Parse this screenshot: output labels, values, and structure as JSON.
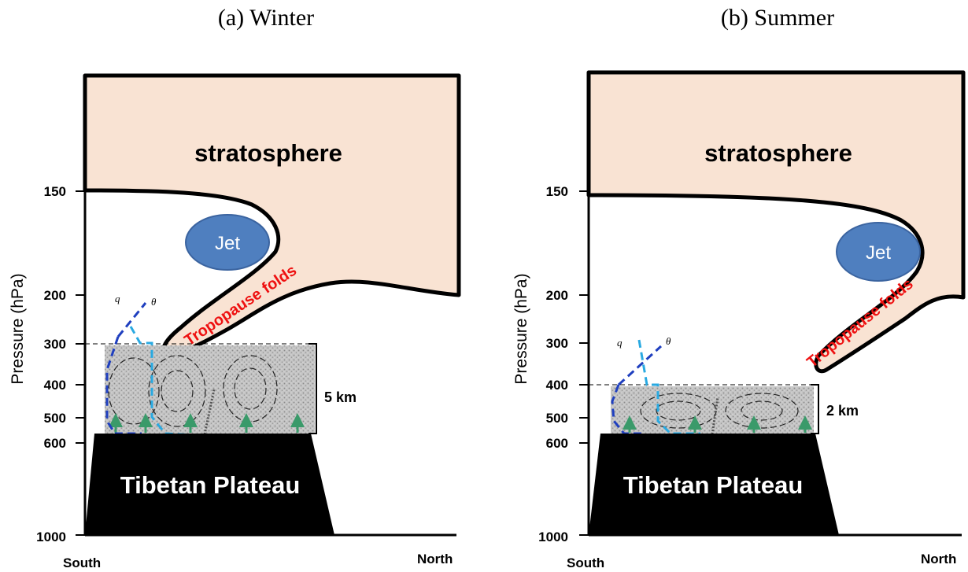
{
  "panels": {
    "winter": {
      "title": "(a) Winter",
      "region_label": "stratosphere",
      "jet_label": "Jet",
      "fold_label": "Tropopause folds",
      "plateau_label": "Tibetan Plateau",
      "pbl_depth_label": "5 km",
      "q_symbol": "q",
      "theta_symbol": "θ",
      "y_axis_label": "Pressure (hPa)",
      "y_ticks": [
        "150",
        "200",
        "300",
        "400",
        "500",
        "600",
        "1000"
      ],
      "x_left_label": "South",
      "x_right_label": "North"
    },
    "summer": {
      "title": "(b) Summer",
      "region_label": "stratosphere",
      "jet_label": "Jet",
      "fold_label": "Tropopause folds",
      "plateau_label": "Tibetan Plateau",
      "pbl_depth_label": "2 km",
      "q_symbol": "q",
      "theta_symbol": "θ",
      "y_axis_label": "Pressure (hPa)",
      "y_ticks": [
        "150",
        "200",
        "300",
        "400",
        "500",
        "600",
        "1000"
      ],
      "x_left_label": "South",
      "x_right_label": "North"
    }
  },
  "colors": {
    "stratosphere_fill": "#f9e3d3",
    "jet_fill": "#4f7fbf",
    "fold_text": "#ee1111",
    "q_profile": "#1f3fbf",
    "theta_profile": "#29a9e1",
    "updraft_arrow": "#3a9a6a",
    "plateau_fill": "#000000",
    "boundary_layer_fill": "#b9b9b9"
  }
}
